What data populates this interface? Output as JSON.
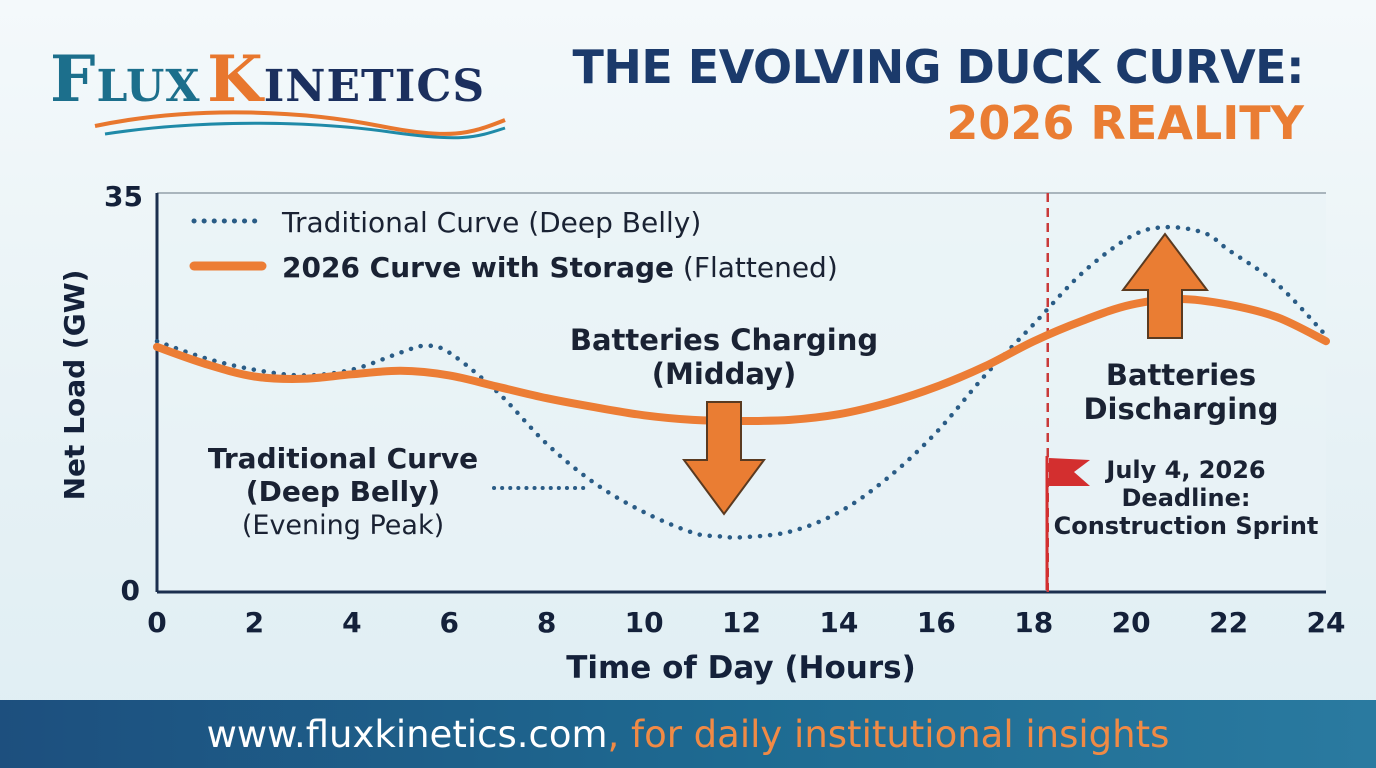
{
  "brand": {
    "logo_flux_initial": "F",
    "logo_flux_rest": "LUX",
    "logo_kinetics_initial": "K",
    "logo_kinetics_rest": "INETICS",
    "colors": {
      "navy": "#1b3a6b",
      "orange": "#ea7d33",
      "teal": "#1c6f8c"
    }
  },
  "header": {
    "title_line1": "THE EVOLVING DUCK CURVE:",
    "title_line2": "2026 REALITY"
  },
  "footer": {
    "url_text": "www.fluxkinetics.com",
    "tagline_text": ", for daily institutional insights"
  },
  "chart_data": {
    "type": "line",
    "xlabel": "Time of Day (Hours)",
    "ylabel": "Net Load (GW)",
    "xlim": [
      0,
      24
    ],
    "ylim": [
      0,
      35
    ],
    "x_ticks": [
      "0",
      "2",
      "4",
      "6",
      "8",
      "10",
      "12",
      "14",
      "16",
      "18",
      "20",
      "22",
      "24"
    ],
    "y_ticks": [
      "0",
      "35"
    ],
    "grid": false,
    "legend_position": "top-left",
    "legend": [
      {
        "text": "Traditional Curve (Deep Belly)",
        "bold_part": "",
        "normal_part": "Traditional Curve (Deep Belly)",
        "style": "dotted",
        "color": "#2a5c86"
      },
      {
        "text": "2026 Curve with Storage (Flattened)",
        "bold_part": "2026 Curve with Storage",
        "normal_part": " (Flattened)",
        "style": "solid",
        "color": "#ec7d35"
      }
    ],
    "series": [
      {
        "name": "Traditional Curve (Deep Belly)",
        "style": "dotted",
        "color": "#2a5c86",
        "x": [
          0,
          1,
          2,
          3,
          4,
          5,
          5.5,
          6,
          7,
          8,
          9,
          10,
          11,
          11.5,
          12,
          13,
          14,
          15,
          16,
          17,
          18,
          19,
          20,
          20.7,
          21.5,
          22,
          23,
          24
        ],
        "y": [
          22,
          20.5,
          19.5,
          19,
          19.5,
          21,
          21.6,
          21,
          17.5,
          13,
          9.5,
          7,
          5.2,
          4.9,
          4.8,
          5.3,
          7,
          10,
          14,
          19,
          23.5,
          28,
          31.2,
          32,
          31.5,
          30,
          27,
          22.5
        ]
      },
      {
        "name": "2026 Curve with Storage (Flattened)",
        "style": "solid",
        "color": "#ec7d35",
        "x": [
          0,
          1,
          2,
          3,
          4,
          5,
          6,
          7,
          8,
          9,
          10,
          11,
          12,
          13,
          14,
          15,
          16,
          17,
          18,
          19,
          20,
          21,
          22,
          23,
          24
        ],
        "y": [
          21.5,
          20,
          18.9,
          18.7,
          19.1,
          19.4,
          19,
          18,
          17,
          16.2,
          15.5,
          15.1,
          15,
          15.1,
          15.6,
          16.6,
          18,
          19.8,
          22,
          23.8,
          25.2,
          25.7,
          25.2,
          24.1,
          22
        ]
      }
    ],
    "annotations": [
      {
        "id": "charging",
        "lines": [
          "Batteries Charging",
          "(Midday)"
        ],
        "arrow": "down"
      },
      {
        "id": "discharging",
        "lines": [
          "Batteries",
          "Discharging"
        ],
        "arrow": "up"
      },
      {
        "id": "traditional",
        "lines": [
          "Traditional Curve",
          "(Deep Belly)",
          "(Evening Peak)"
        ]
      },
      {
        "id": "deadline",
        "lines": [
          "July 4, 2026",
          "Deadline:",
          "Construction Sprint"
        ],
        "marker": "flag",
        "color": "#d32f2f"
      }
    ],
    "vertical_line": {
      "x": 18,
      "style": "dashed",
      "color": "#c93a3a"
    }
  }
}
